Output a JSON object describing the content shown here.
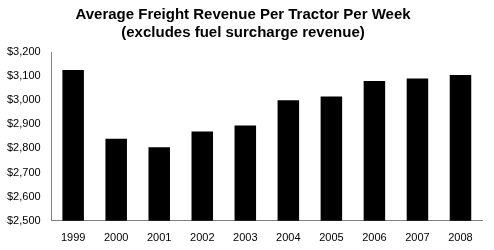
{
  "chart_data": {
    "type": "bar",
    "title": "Average Freight Revenue Per Tractor Per Week",
    "subtitle": "(excludes fuel surcharge revenue)",
    "categories": [
      "1999",
      "2000",
      "2001",
      "2002",
      "2003",
      "2004",
      "2005",
      "2006",
      "2007",
      "2008"
    ],
    "values": [
      3125,
      2840,
      2805,
      2870,
      2895,
      3000,
      3015,
      3080,
      3090,
      3105
    ],
    "color": "#000000",
    "ylim": [
      2500,
      3200
    ],
    "yticks": [
      {
        "value": 2500,
        "label": "$2,500"
      },
      {
        "value": 2600,
        "label": "$2,600"
      },
      {
        "value": 2700,
        "label": "$2,700"
      },
      {
        "value": 2800,
        "label": "$2,800"
      },
      {
        "value": 2900,
        "label": "$2,900"
      },
      {
        "value": 3000,
        "label": "$3,000"
      },
      {
        "value": 3100,
        "label": "$3,100"
      },
      {
        "value": 3200,
        "label": "$3,200"
      }
    ],
    "grid": false
  }
}
